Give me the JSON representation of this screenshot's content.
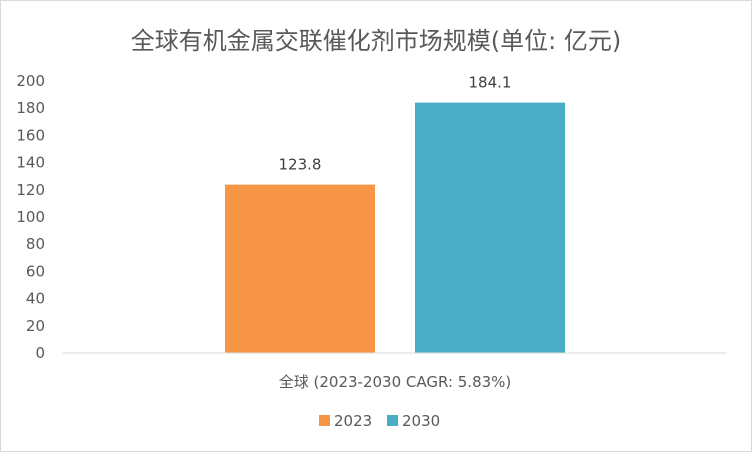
{
  "chart_data": {
    "type": "bar",
    "title": "全球有机金属交联催化剂市场规模(单位: 亿元)",
    "categories": [
      "全球 (2023-2030 CAGR: 5.83%)"
    ],
    "series": [
      {
        "name": "2023",
        "values": [
          123.8
        ],
        "color": "#F79646"
      },
      {
        "name": "2030",
        "values": [
          184.1
        ],
        "color": "#4BACC6"
      }
    ],
    "data_labels": [
      "123.8",
      "184.1"
    ],
    "yticks": [
      "0",
      "20",
      "40",
      "60",
      "80",
      "100",
      "120",
      "140",
      "160",
      "180",
      "200"
    ],
    "ylim": [
      0,
      200
    ],
    "xlabel": "",
    "ylabel": "",
    "grid": false,
    "legend_position": "bottom"
  }
}
